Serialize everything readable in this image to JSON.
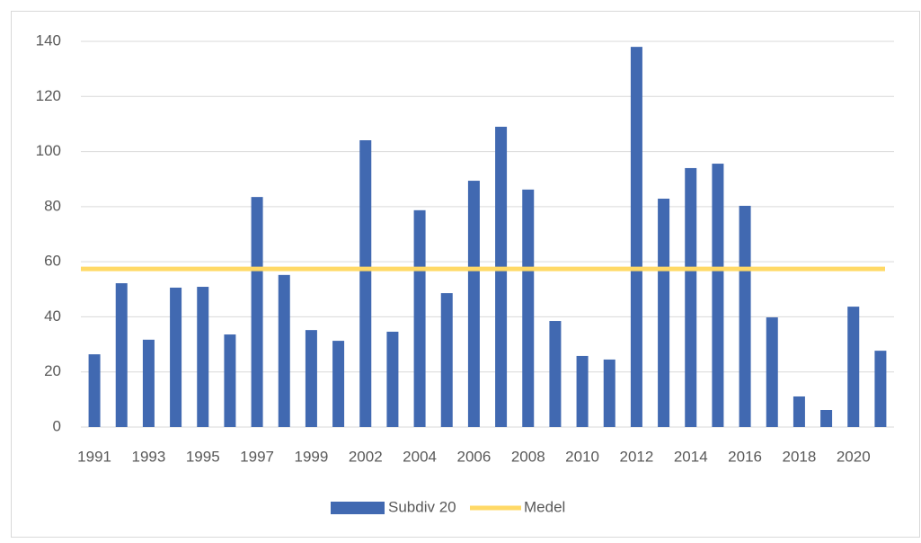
{
  "chart_data": {
    "type": "bar",
    "categories": [
      "1991",
      null,
      "1993",
      null,
      "1995",
      null,
      "1997",
      null,
      "1999",
      null,
      "2002",
      null,
      "2004",
      null,
      "2006",
      null,
      "2008",
      null,
      "2010",
      null,
      "2012",
      null,
      "2014",
      null,
      "2016",
      null,
      "2018",
      null,
      "2020",
      null
    ],
    "series": [
      {
        "name": "Subdiv 20",
        "type": "bar",
        "color": "#4169b1",
        "values": [
          26.4,
          52.2,
          31.7,
          50.6,
          50.9,
          33.6,
          83.5,
          55.2,
          35.2,
          31.3,
          104.1,
          34.6,
          78.7,
          48.6,
          89.4,
          109,
          86.2,
          38.5,
          25.8,
          24.5,
          138,
          82.9,
          94,
          95.6,
          80.3,
          39.8,
          11.1,
          6.2,
          43.7,
          27.7
        ]
      },
      {
        "name": "Medel",
        "type": "line",
        "color": "#ffd966",
        "values": [
          57.4,
          57.4,
          57.4,
          57.4,
          57.4,
          57.4,
          57.4,
          57.4,
          57.4,
          57.4,
          57.4,
          57.4,
          57.4,
          57.4,
          57.4,
          57.4,
          57.4,
          57.4,
          57.4,
          57.4,
          57.4,
          57.4,
          57.4,
          57.4,
          57.4,
          57.4,
          57.4,
          57.4,
          57.4,
          57.4
        ]
      }
    ],
    "ylim": [
      0,
      140
    ],
    "yticks": [
      0,
      20,
      40,
      60,
      80,
      100,
      120,
      140
    ],
    "grid": true,
    "legend": "bottom"
  }
}
